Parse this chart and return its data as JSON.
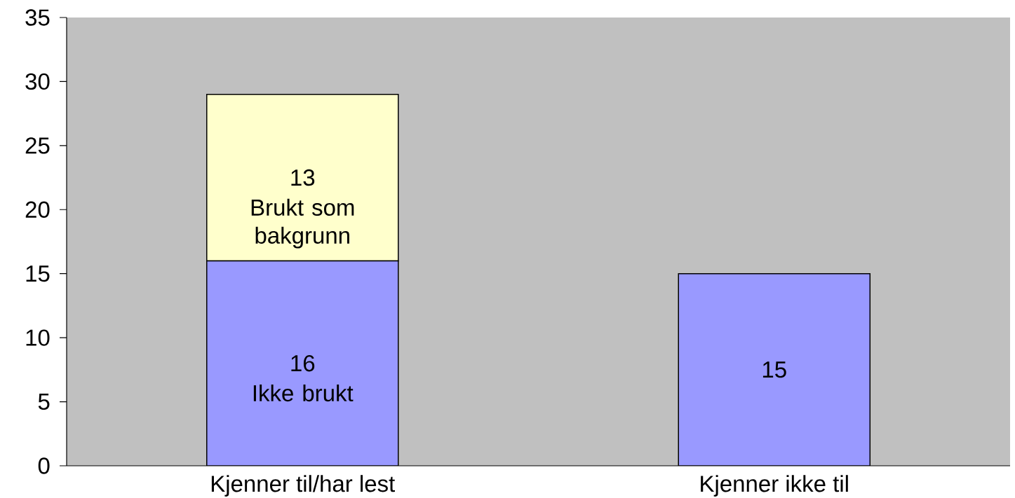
{
  "chart_data": {
    "type": "bar",
    "stacked": true,
    "categories": [
      "Kjenner til/har lest",
      "Kjenner ikke til"
    ],
    "series": [
      {
        "name": "Ikke brukt",
        "color": "#9999ff",
        "values": [
          16,
          15
        ]
      },
      {
        "name": "Brukt som bakgrunn",
        "color": "#ffffcc",
        "values": [
          13,
          null
        ]
      }
    ],
    "ylim": [
      0,
      35
    ],
    "yticks": [
      0,
      5,
      10,
      15,
      20,
      25,
      30,
      35
    ],
    "data_labels": true,
    "grid": false,
    "legend": false
  }
}
